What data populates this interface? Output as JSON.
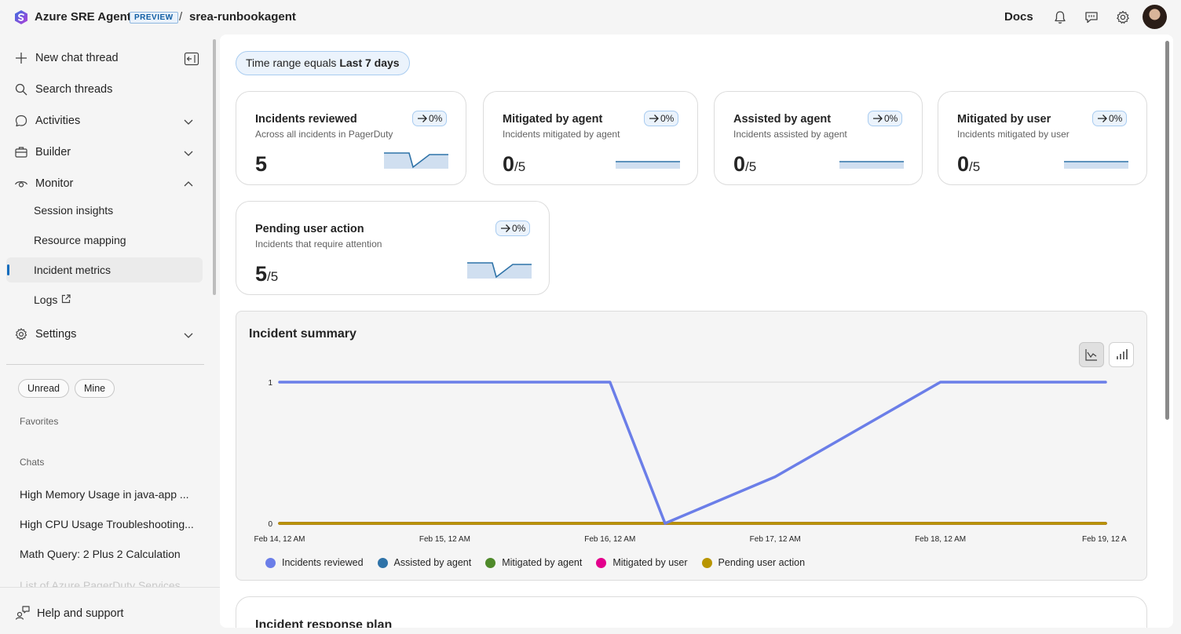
{
  "header": {
    "app_title": "Azure SRE Agent",
    "badge": "PREVIEW",
    "separator": "/",
    "agent_name": "srea-runbookagent",
    "docs_label": "Docs"
  },
  "sidebar": {
    "new_chat": "New chat thread",
    "search": "Search threads",
    "activities": "Activities",
    "builder": "Builder",
    "monitor": "Monitor",
    "monitor_items": [
      "Session insights",
      "Resource mapping",
      "Incident metrics",
      "Logs"
    ],
    "settings": "Settings",
    "filters": [
      "Unread",
      "Mine"
    ],
    "favorites_label": "Favorites",
    "chats_label": "Chats",
    "chats": [
      "High Memory Usage in java-app ...",
      "High CPU Usage Troubleshooting...",
      "Math Query: 2 Plus 2 Calculation",
      "List of Azure PagerDuty Services"
    ],
    "help": "Help and support"
  },
  "main": {
    "filter_prefix": "Time range equals ",
    "filter_value": "Last 7 days",
    "cards": [
      {
        "title": "Incidents reviewed",
        "subtitle": "Across all incidents in PagerDuty",
        "badge": "0%",
        "value": "5",
        "denominator": ""
      },
      {
        "title": "Mitigated by agent",
        "subtitle": "Incidents mitigated by agent",
        "badge": "0%",
        "value": "0",
        "denominator": "/5"
      },
      {
        "title": "Assisted by agent",
        "subtitle": "Incidents assisted by agent",
        "badge": "0%",
        "value": "0",
        "denominator": "/5"
      },
      {
        "title": "Mitigated by user",
        "subtitle": "Incidents mitigated by user",
        "badge": "0%",
        "value": "0",
        "denominator": "/5"
      },
      {
        "title": "Pending user action",
        "subtitle": "Incidents that require attention",
        "badge": "0%",
        "value": "5",
        "denominator": "/5"
      }
    ],
    "summary_title": "Incident summary",
    "plan_title": "Incident response plan"
  },
  "colors": {
    "accent": "#0f6cbd",
    "incidents_reviewed": "#6b7ee8",
    "assisted_by_agent": "#2f73a8",
    "mitigated_by_agent": "#4f8a2a",
    "mitigated_by_user": "#e3008c",
    "pending_user_action": "#b89500"
  },
  "chart_data": {
    "type": "line",
    "title": "Incident summary",
    "x": [
      "Feb 14, 12 AM",
      "Feb 15, 12 AM",
      "Feb 16, 12 AM",
      "Feb 16, 8 AM",
      "Feb 17, 12 AM",
      "Feb 18, 12 AM",
      "Feb 19, 12 AM"
    ],
    "x_tick_labels": [
      "Feb 14, 12 AM",
      "Feb 15, 12 AM",
      "Feb 16, 12 AM",
      "Feb 17, 12 AM",
      "Feb 18, 12 AM",
      "Feb 19, 12 A"
    ],
    "ylim": [
      0,
      1
    ],
    "y_ticks": [
      "0",
      "1"
    ],
    "grid": true,
    "legend_position": "bottom",
    "series": [
      {
        "name": "Incidents reviewed",
        "color": "#6b7ee8",
        "values": [
          1,
          1,
          1,
          0,
          0.33,
          1,
          1
        ]
      },
      {
        "name": "Assisted by agent",
        "color": "#2f73a8",
        "values": [
          0,
          0,
          0,
          0,
          0,
          0,
          0
        ]
      },
      {
        "name": "Mitigated by agent",
        "color": "#4f8a2a",
        "values": [
          0,
          0,
          0,
          0,
          0,
          0,
          0
        ]
      },
      {
        "name": "Mitigated by user",
        "color": "#e3008c",
        "values": [
          0,
          0,
          0,
          0,
          0,
          0,
          0
        ]
      },
      {
        "name": "Pending user action",
        "color": "#b89500",
        "values": [
          0,
          0,
          0,
          0,
          0,
          0,
          0
        ]
      }
    ]
  }
}
